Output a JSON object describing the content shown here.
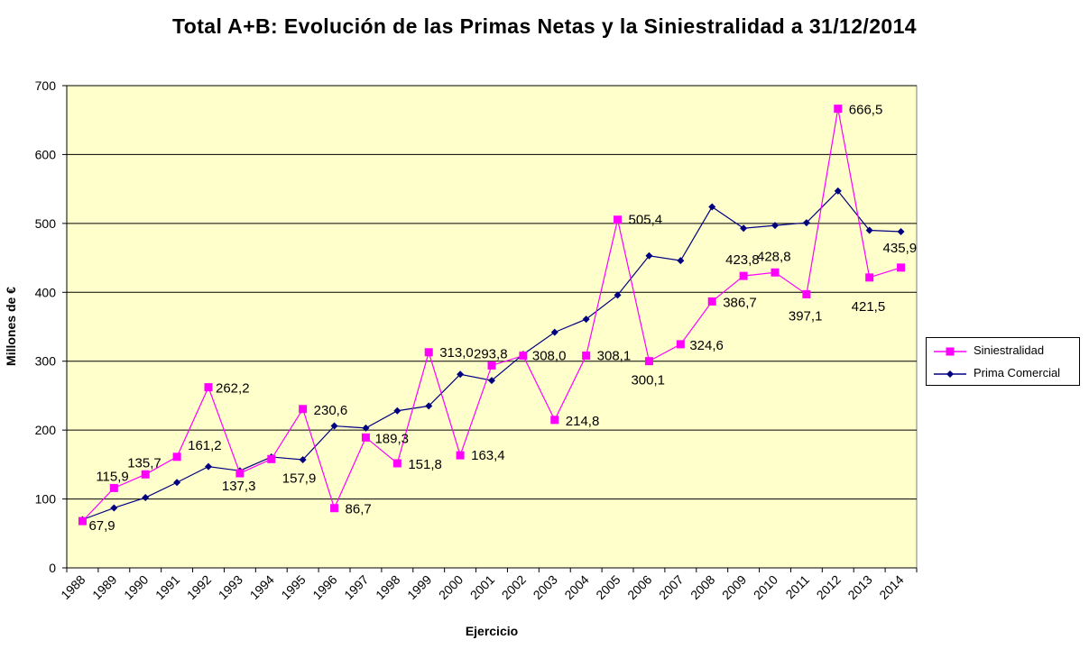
{
  "chart_data": {
    "type": "line",
    "title": "Total A+B: Evolución de las Primas Netas y la Siniestralidad a 31/12/2014",
    "xlabel": "Ejercicio",
    "ylabel": "Millones de €",
    "ylim": [
      0,
      700
    ],
    "yticks": [
      "0",
      "100",
      "200",
      "300",
      "400",
      "500",
      "600",
      "700"
    ],
    "grid": true,
    "legend_position": "right",
    "plot_background": "#FFFFCC",
    "categories": [
      "1988",
      "1989",
      "1990",
      "1991",
      "1992",
      "1993",
      "1994",
      "1995",
      "1996",
      "1997",
      "1998",
      "1999",
      "2000",
      "2001",
      "2002",
      "2003",
      "2004",
      "2005",
      "2006",
      "2007",
      "2008",
      "2009",
      "2010",
      "2011",
      "2012",
      "2013",
      "2014"
    ],
    "series": [
      {
        "name": "Siniestralidad",
        "color": "#FF00FF",
        "marker": "square",
        "values": [
          67.9,
          115.9,
          135.7,
          161.2,
          262.2,
          137.3,
          157.9,
          230.6,
          86.7,
          189.3,
          151.8,
          313.0,
          163.4,
          293.8,
          308.0,
          214.8,
          308.1,
          505.4,
          300.1,
          324.6,
          386.7,
          423.8,
          428.8,
          397.1,
          666.5,
          421.5,
          435.9
        ],
        "labels": [
          "67,9",
          "115,9",
          "135,7",
          "161,2",
          "262,2",
          "137,3",
          "157,9",
          "230,6",
          "86,7",
          "189,3",
          "151,8",
          "313,0",
          "163,4",
          "293,8",
          "308,0",
          "214,8",
          "308,1",
          "505,4",
          "300,1",
          "324,6",
          "386,7",
          "423,8",
          "428,8",
          "397,1",
          "666,5",
          "421,5",
          "435,9"
        ]
      },
      {
        "name": "Prima Comercial",
        "color": "#000080",
        "marker": "diamond",
        "values": [
          70,
          87,
          102,
          124,
          147,
          141,
          161,
          157,
          206,
          203,
          228,
          235,
          281,
          272,
          310,
          342,
          361,
          396,
          453,
          446,
          524,
          493,
          497,
          501,
          547,
          490,
          488
        ]
      }
    ]
  }
}
